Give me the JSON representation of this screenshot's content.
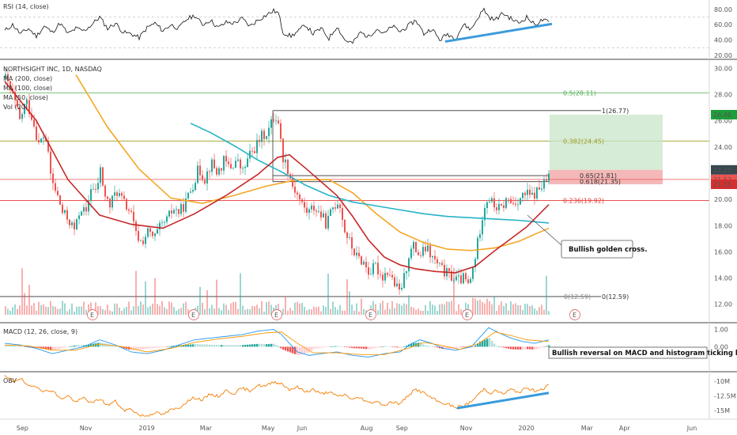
{
  "chart_data": {
    "type": "line",
    "title": "NORTHSIGHT INC, 1D, NASDAQ",
    "x_labels": [
      "Sep",
      "Nov",
      "2019",
      "Mar",
      "May",
      "Jun",
      "Aug",
      "Sep",
      "Nov",
      "2020",
      "Mar",
      "Apr",
      "Jun"
    ],
    "legend": [
      "MA (200, close)",
      "MA (100, close)",
      "MA (50, close)",
      "Vol (20)"
    ],
    "price_axis": {
      "ticks": [
        "30.00",
        "28.00",
        "26.00",
        "24.00",
        "22.00",
        "20.00",
        "18.00",
        "16.00",
        "14.00",
        "12.00"
      ],
      "ylim": [
        11.2,
        30.5
      ]
    },
    "price_badges": [
      {
        "label": "26.46",
        "value": 26.46,
        "color": "#1e9e3a"
      },
      {
        "label": "22.25",
        "value": 22.25,
        "color": "#37474f"
      },
      {
        "label": "21.52",
        "value": 21.52,
        "color": "#ef5350"
      },
      {
        "label": "21.15",
        "value": 21.15,
        "color": "#d32f2f"
      }
    ],
    "fib_levels": [
      {
        "label": "1(26.77)",
        "value": 26.77,
        "color": "#333333"
      },
      {
        "label": "0.65(21.81)",
        "value": 21.81,
        "color": "#333333"
      },
      {
        "label": "0.618(21.35)",
        "value": 21.35,
        "color": "#333333"
      },
      {
        "label": "0(12.59)",
        "value": 12.59,
        "color": "#333333"
      },
      {
        "label": "0(12.59)",
        "value": 12.59,
        "color": "#888888"
      }
    ],
    "h_lines": [
      {
        "label": "0.5(28.11)",
        "value": 28.11,
        "color": "#4caf50"
      },
      {
        "label": "0.382(24.45)",
        "value": 24.45,
        "color": "#9e9d24"
      },
      {
        "label": "0.236(19.92)",
        "value": 19.92,
        "color": "#e53935"
      }
    ],
    "target_zone": {
      "top": 26.46,
      "bottom": 22.25
    },
    "stop_zone": {
      "top": 22.25,
      "bottom": 21.15
    },
    "entry": 21.52,
    "earnings_marker": "E",
    "rsi": {
      "title": "RSI (14, close)",
      "ticks": [
        "80.00",
        "60.00",
        "40.00",
        "20.00"
      ],
      "ylim": [
        18,
        88
      ]
    },
    "macd": {
      "title": "MACD (12, 26, close, 9)",
      "ticks": [
        "1.00",
        "0.00"
      ],
      "ylim": [
        -1.35,
        1.25
      ]
    },
    "obv": {
      "title": "OBV",
      "ticks": [
        "-10M",
        "-12.5M",
        "-15M"
      ],
      "ylim": [
        -16.2,
        -8.8
      ]
    },
    "annotations": {
      "golden_cross": "Bullish golden cross.",
      "macd_reversal": "Bullish reversal on MACD and histogram ticking higher."
    },
    "price_series": [
      [
        0,
        29.2
      ],
      [
        10,
        27.8
      ],
      [
        18,
        26.0
      ],
      [
        26,
        27.5
      ],
      [
        34,
        26.2
      ],
      [
        42,
        24.2
      ],
      [
        50,
        25.0
      ],
      [
        58,
        21.5
      ],
      [
        66,
        20.2
      ],
      [
        72,
        19.0
      ],
      [
        80,
        18.4
      ],
      [
        88,
        17.6
      ],
      [
        95,
        19.5
      ],
      [
        102,
        18.8
      ],
      [
        108,
        21.0
      ],
      [
        114,
        20.5
      ],
      [
        120,
        22.2
      ],
      [
        126,
        20.2
      ],
      [
        132,
        19.5
      ],
      [
        140,
        20.7
      ],
      [
        150,
        19.7
      ],
      [
        158,
        19.0
      ],
      [
        165,
        17.3
      ],
      [
        172,
        16.7
      ],
      [
        180,
        17.5
      ],
      [
        188,
        17.0
      ],
      [
        196,
        17.9
      ],
      [
        204,
        18.4
      ],
      [
        212,
        19.3
      ],
      [
        220,
        19.0
      ],
      [
        228,
        19.8
      ],
      [
        236,
        21.0
      ],
      [
        244,
        22.3
      ],
      [
        252,
        21.6
      ],
      [
        260,
        22.8
      ],
      [
        268,
        22.0
      ],
      [
        276,
        22.9
      ],
      [
        284,
        22.4
      ],
      [
        292,
        23.0
      ],
      [
        300,
        22.1
      ],
      [
        308,
        23.3
      ],
      [
        316,
        24.0
      ],
      [
        324,
        24.8
      ],
      [
        332,
        25.2
      ],
      [
        340,
        26.4
      ],
      [
        345,
        26.0
      ],
      [
        350,
        23.3
      ],
      [
        356,
        22.6
      ],
      [
        362,
        21.2
      ],
      [
        368,
        20.5
      ],
      [
        375,
        19.6
      ],
      [
        382,
        19.0
      ],
      [
        390,
        19.4
      ],
      [
        398,
        18.9
      ],
      [
        406,
        18.1
      ],
      [
        414,
        19.4
      ],
      [
        422,
        20.0
      ],
      [
        428,
        17.8
      ],
      [
        436,
        16.6
      ],
      [
        444,
        15.6
      ],
      [
        452,
        15.3
      ],
      [
        460,
        14.4
      ],
      [
        468,
        14.9
      ],
      [
        476,
        14.1
      ],
      [
        484,
        14.6
      ],
      [
        492,
        13.5
      ],
      [
        498,
        12.9
      ],
      [
        504,
        14.0
      ],
      [
        510,
        15.8
      ],
      [
        516,
        16.4
      ],
      [
        524,
        15.7
      ],
      [
        532,
        16.3
      ],
      [
        540,
        15.5
      ],
      [
        548,
        14.9
      ],
      [
        556,
        14.4
      ],
      [
        564,
        14.1
      ],
      [
        572,
        13.8
      ],
      [
        580,
        14.0
      ],
      [
        586,
        13.3
      ],
      [
        592,
        15.0
      ],
      [
        598,
        17.0
      ],
      [
        604,
        19.2
      ],
      [
        610,
        20.2
      ],
      [
        618,
        19.5
      ],
      [
        626,
        19.2
      ],
      [
        634,
        20.0
      ],
      [
        642,
        19.7
      ],
      [
        650,
        20.1
      ],
      [
        658,
        20.4
      ],
      [
        666,
        20.2
      ],
      [
        672,
        20.6
      ],
      [
        678,
        21.0
      ],
      [
        684,
        21.4
      ],
      [
        688,
        21.9
      ]
    ],
    "ma50": [
      [
        0,
        29.0
      ],
      [
        40,
        26.0
      ],
      [
        80,
        21.5
      ],
      [
        120,
        18.8
      ],
      [
        160,
        18.1
      ],
      [
        200,
        17.8
      ],
      [
        240,
        18.9
      ],
      [
        280,
        20.3
      ],
      [
        320,
        21.9
      ],
      [
        345,
        23.2
      ],
      [
        360,
        23.4
      ],
      [
        380,
        22.4
      ],
      [
        420,
        20.3
      ],
      [
        440,
        18.7
      ],
      [
        460,
        16.9
      ],
      [
        480,
        15.6
      ],
      [
        500,
        15.0
      ],
      [
        520,
        14.7
      ],
      [
        545,
        14.5
      ],
      [
        570,
        14.4
      ],
      [
        595,
        14.9
      ],
      [
        620,
        16.1
      ],
      [
        640,
        17.0
      ],
      [
        660,
        17.9
      ],
      [
        688,
        19.6
      ]
    ],
    "ma100": [
      [
        90,
        29.5
      ],
      [
        130,
        25.5
      ],
      [
        170,
        22.3
      ],
      [
        210,
        20.1
      ],
      [
        250,
        19.7
      ],
      [
        290,
        20.3
      ],
      [
        330,
        21.0
      ],
      [
        370,
        21.5
      ],
      [
        410,
        21.5
      ],
      [
        440,
        20.5
      ],
      [
        470,
        18.9
      ],
      [
        500,
        17.5
      ],
      [
        530,
        16.7
      ],
      [
        560,
        16.2
      ],
      [
        590,
        16.1
      ],
      [
        620,
        16.3
      ],
      [
        650,
        16.8
      ],
      [
        688,
        17.8
      ]
    ],
    "ma200": [
      [
        235,
        25.8
      ],
      [
        260,
        25.1
      ],
      [
        290,
        24.1
      ],
      [
        320,
        23.0
      ],
      [
        350,
        22.1
      ],
      [
        380,
        21.1
      ],
      [
        410,
        20.3
      ],
      [
        440,
        19.8
      ],
      [
        470,
        19.5
      ],
      [
        500,
        19.2
      ],
      [
        530,
        18.9
      ],
      [
        560,
        18.7
      ],
      [
        590,
        18.6
      ],
      [
        620,
        18.5
      ],
      [
        650,
        18.4
      ],
      [
        688,
        18.2
      ]
    ],
    "rsi_series": [
      [
        0,
        52
      ],
      [
        10,
        60
      ],
      [
        20,
        48
      ],
      [
        30,
        55
      ],
      [
        40,
        45
      ],
      [
        50,
        58
      ],
      [
        60,
        50
      ],
      [
        70,
        62
      ],
      [
        80,
        48
      ],
      [
        90,
        55
      ],
      [
        100,
        52
      ],
      [
        110,
        60
      ],
      [
        120,
        70
      ],
      [
        130,
        55
      ],
      [
        140,
        62
      ],
      [
        150,
        50
      ],
      [
        160,
        48
      ],
      [
        170,
        43
      ],
      [
        180,
        56
      ],
      [
        190,
        62
      ],
      [
        200,
        52
      ],
      [
        210,
        60
      ],
      [
        220,
        55
      ],
      [
        230,
        67
      ],
      [
        240,
        72
      ],
      [
        250,
        60
      ],
      [
        260,
        66
      ],
      [
        270,
        56
      ],
      [
        280,
        63
      ],
      [
        290,
        62
      ],
      [
        300,
        68
      ],
      [
        310,
        58
      ],
      [
        320,
        66
      ],
      [
        330,
        72
      ],
      [
        340,
        78
      ],
      [
        346,
        75
      ],
      [
        352,
        50
      ],
      [
        362,
        45
      ],
      [
        372,
        52
      ],
      [
        380,
        60
      ],
      [
        390,
        48
      ],
      [
        400,
        55
      ],
      [
        410,
        42
      ],
      [
        420,
        58
      ],
      [
        430,
        40
      ],
      [
        440,
        36
      ],
      [
        450,
        50
      ],
      [
        460,
        44
      ],
      [
        470,
        55
      ],
      [
        480,
        48
      ],
      [
        490,
        58
      ],
      [
        500,
        51
      ],
      [
        510,
        58
      ],
      [
        520,
        66
      ],
      [
        530,
        48
      ],
      [
        540,
        55
      ],
      [
        550,
        40
      ],
      [
        560,
        48
      ],
      [
        570,
        42
      ],
      [
        580,
        60
      ],
      [
        590,
        54
      ],
      [
        600,
        72
      ],
      [
        606,
        80
      ],
      [
        612,
        70
      ],
      [
        620,
        66
      ],
      [
        630,
        75
      ],
      [
        640,
        68
      ],
      [
        650,
        62
      ],
      [
        660,
        70
      ],
      [
        670,
        60
      ],
      [
        680,
        66
      ],
      [
        688,
        63
      ]
    ],
    "rsi_trend": [
      [
        563,
        38
      ],
      [
        698,
        61
      ]
    ],
    "obv_series": [
      [
        0,
        -9.2
      ],
      [
        10,
        -10.0
      ],
      [
        20,
        -9.5
      ],
      [
        30,
        -11.0
      ],
      [
        40,
        -10.8
      ],
      [
        50,
        -11.8
      ],
      [
        60,
        -11.5
      ],
      [
        70,
        -13.0
      ],
      [
        80,
        -12.5
      ],
      [
        90,
        -13.6
      ],
      [
        100,
        -12.8
      ],
      [
        110,
        -13.8
      ],
      [
        120,
        -13.0
      ],
      [
        130,
        -14.1
      ],
      [
        140,
        -13.4
      ],
      [
        150,
        -15.0
      ],
      [
        160,
        -14.7
      ],
      [
        170,
        -15.8
      ],
      [
        180,
        -15.9
      ],
      [
        190,
        -15.3
      ],
      [
        200,
        -15.7
      ],
      [
        210,
        -14.9
      ],
      [
        220,
        -14.6
      ],
      [
        230,
        -13.5
      ],
      [
        240,
        -12.8
      ],
      [
        250,
        -13.2
      ],
      [
        260,
        -12.2
      ],
      [
        270,
        -12.6
      ],
      [
        280,
        -11.6
      ],
      [
        290,
        -12.1
      ],
      [
        300,
        -11.2
      ],
      [
        310,
        -11.6
      ],
      [
        320,
        -10.7
      ],
      [
        330,
        -10.9
      ],
      [
        340,
        -10.1
      ],
      [
        350,
        -10.4
      ],
      [
        360,
        -11.4
      ],
      [
        370,
        -11.0
      ],
      [
        380,
        -11.8
      ],
      [
        390,
        -11.4
      ],
      [
        400,
        -12.2
      ],
      [
        410,
        -11.8
      ],
      [
        420,
        -12.6
      ],
      [
        430,
        -12.3
      ],
      [
        440,
        -13.1
      ],
      [
        450,
        -12.8
      ],
      [
        460,
        -13.7
      ],
      [
        470,
        -13.4
      ],
      [
        480,
        -14.1
      ],
      [
        490,
        -13.5
      ],
      [
        500,
        -13.9
      ],
      [
        510,
        -12.4
      ],
      [
        520,
        -11.4
      ],
      [
        530,
        -12.0
      ],
      [
        540,
        -12.9
      ],
      [
        550,
        -13.6
      ],
      [
        560,
        -13.9
      ],
      [
        570,
        -14.5
      ],
      [
        580,
        -14.2
      ],
      [
        590,
        -13.5
      ],
      [
        598,
        -12.4
      ],
      [
        606,
        -11.3
      ],
      [
        614,
        -12.0
      ],
      [
        622,
        -11.6
      ],
      [
        630,
        -12.2
      ],
      [
        640,
        -11.4
      ],
      [
        650,
        -11.9
      ],
      [
        660,
        -11.2
      ],
      [
        670,
        -11.6
      ],
      [
        680,
        -11.3
      ],
      [
        688,
        -10.7
      ]
    ],
    "obv_trend": [
      [
        578,
        -14.6
      ],
      [
        694,
        -12.0
      ]
    ],
    "macd_line": [
      [
        0,
        0.2
      ],
      [
        20,
        0.1
      ],
      [
        40,
        -0.1
      ],
      [
        60,
        -0.4
      ],
      [
        80,
        -0.2
      ],
      [
        100,
        0.0
      ],
      [
        120,
        0.4
      ],
      [
        140,
        0.1
      ],
      [
        160,
        -0.3
      ],
      [
        180,
        -0.4
      ],
      [
        200,
        -0.2
      ],
      [
        220,
        0.1
      ],
      [
        240,
        0.4
      ],
      [
        260,
        0.5
      ],
      [
        280,
        0.6
      ],
      [
        300,
        0.7
      ],
      [
        320,
        0.9
      ],
      [
        340,
        1.0
      ],
      [
        350,
        0.7
      ],
      [
        360,
        0.2
      ],
      [
        370,
        -0.3
      ],
      [
        385,
        -0.5
      ],
      [
        400,
        -0.4
      ],
      [
        420,
        -0.3
      ],
      [
        440,
        -0.5
      ],
      [
        460,
        -0.6
      ],
      [
        480,
        -0.4
      ],
      [
        500,
        -0.3
      ],
      [
        515,
        0.2
      ],
      [
        525,
        0.4
      ],
      [
        540,
        0.2
      ],
      [
        555,
        -0.1
      ],
      [
        570,
        -0.2
      ],
      [
        590,
        0.0
      ],
      [
        600,
        0.5
      ],
      [
        612,
        1.1
      ],
      [
        625,
        0.8
      ],
      [
        640,
        0.5
      ],
      [
        655,
        0.3
      ],
      [
        670,
        0.2
      ],
      [
        688,
        0.4
      ]
    ],
    "macd_signal": [
      [
        0,
        0.1
      ],
      [
        30,
        0.05
      ],
      [
        60,
        -0.2
      ],
      [
        90,
        -0.2
      ],
      [
        120,
        0.15
      ],
      [
        150,
        0.0
      ],
      [
        180,
        -0.3
      ],
      [
        210,
        -0.1
      ],
      [
        240,
        0.25
      ],
      [
        270,
        0.45
      ],
      [
        300,
        0.6
      ],
      [
        330,
        0.8
      ],
      [
        350,
        0.85
      ],
      [
        370,
        0.2
      ],
      [
        390,
        -0.35
      ],
      [
        420,
        -0.35
      ],
      [
        450,
        -0.45
      ],
      [
        480,
        -0.45
      ],
      [
        510,
        -0.1
      ],
      [
        530,
        0.25
      ],
      [
        550,
        0.1
      ],
      [
        575,
        -0.15
      ],
      [
        600,
        0.2
      ],
      [
        620,
        0.85
      ],
      [
        640,
        0.65
      ],
      [
        660,
        0.4
      ],
      [
        688,
        0.3
      ]
    ]
  }
}
